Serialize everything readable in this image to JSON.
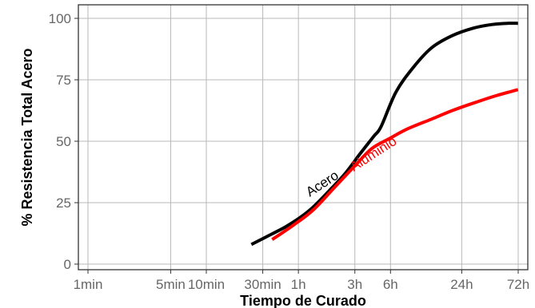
{
  "chart_data": {
    "type": "line",
    "title": "",
    "xlabel": "Tiempo de Curado",
    "ylabel": "% Resistencia Total Acero",
    "x_scale": "log",
    "x_unit": "minutes",
    "xlim": [
      1,
      4320
    ],
    "ylim": [
      0,
      100
    ],
    "grid": true,
    "x_ticks": [
      {
        "value": 1,
        "label": "1min"
      },
      {
        "value": 5,
        "label": "5min"
      },
      {
        "value": 10,
        "label": "10min"
      },
      {
        "value": 30,
        "label": "30min"
      },
      {
        "value": 60,
        "label": "1h"
      },
      {
        "value": 180,
        "label": "3h"
      },
      {
        "value": 360,
        "label": "6h"
      },
      {
        "value": 1440,
        "label": "24h"
      },
      {
        "value": 4320,
        "label": "72h"
      }
    ],
    "y_ticks": [
      0,
      25,
      50,
      75,
      100
    ],
    "series": [
      {
        "name": "Acero",
        "color": "#000000",
        "x": [
          24,
          35,
          50,
          75,
          110,
          150,
          200,
          260,
          300,
          400,
          560,
          800,
          1200,
          1800,
          2600,
          3500,
          4300
        ],
        "y": [
          8,
          12,
          16,
          22,
          30,
          37,
          45,
          52,
          56,
          70,
          80,
          88,
          93,
          96,
          97.5,
          98,
          98
        ]
      },
      {
        "name": "Aluminio",
        "color": "#ff0000",
        "x": [
          36,
          55,
          80,
          120,
          180,
          250,
          350,
          500,
          800,
          1200,
          1800,
          2800,
          4300
        ],
        "y": [
          10,
          16,
          22,
          31,
          40,
          47,
          51,
          55,
          59,
          62.5,
          65.5,
          68.5,
          71
        ]
      }
    ],
    "annotations": [
      {
        "text": "Acero",
        "series": "Acero"
      },
      {
        "text": "Aluminio",
        "series": "Aluminio"
      }
    ]
  }
}
